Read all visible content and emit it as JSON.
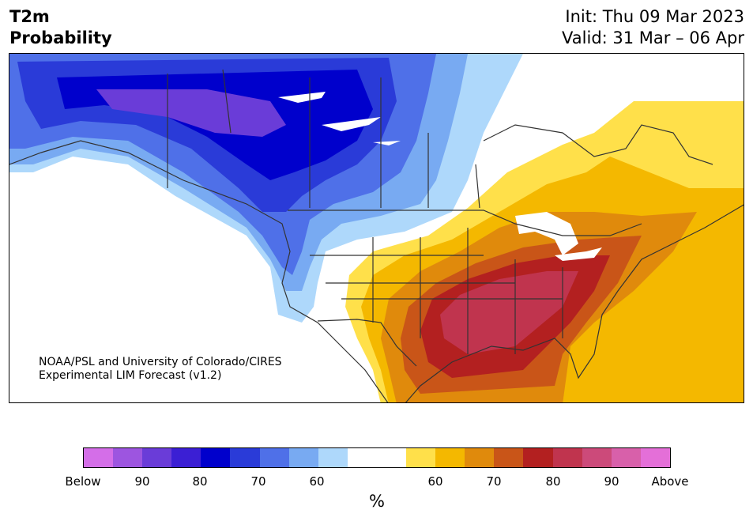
{
  "header": {
    "variable": "T2m",
    "product": "Probability",
    "init": "Init: Thu 09 Mar 2023",
    "valid": "Valid: 31 Mar – 06 Apr"
  },
  "credit": {
    "line1": "NOAA/PSL and University of Colorado/CIRES",
    "line2": "Experimental LIM Forecast (v1.2)"
  },
  "colorbar": {
    "unit": "%",
    "colors": [
      "#d46ee8",
      "#9d55e0",
      "#6a3cd8",
      "#3b1fd4",
      "#0000cc",
      "#2a3bd8",
      "#4f70e8",
      "#78aaf2",
      "#aed8fb",
      "#ffffff",
      "#ffffff",
      "#ffe04a",
      "#f4b800",
      "#e08a0c",
      "#c95518",
      "#b32020",
      "#c0344e",
      "#cc4a7a",
      "#d860aa",
      "#e46fd8"
    ],
    "tick_labels": [
      "Below",
      "90",
      "80",
      "70",
      "60",
      "60",
      "70",
      "80",
      "90",
      "Above"
    ]
  },
  "map_layers": {
    "cold_colors": [
      "#aed8fb",
      "#78aaf2",
      "#4f70e8",
      "#2a3bd8",
      "#0000cc",
      "#6a3cd8"
    ],
    "warm_colors": [
      "#ffe04a",
      "#f4b800",
      "#e08a0c",
      "#c95518",
      "#b32020",
      "#c0344e"
    ],
    "lake_color": "#ffffff",
    "border_color": "#333333"
  }
}
